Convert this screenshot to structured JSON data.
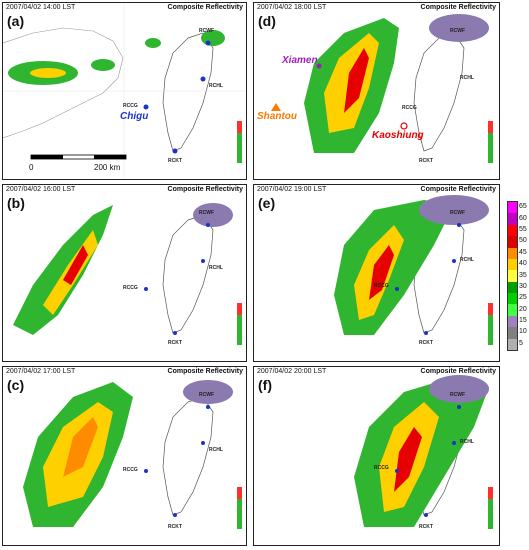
{
  "panels": [
    {
      "id": "a",
      "label": "(a)",
      "time": "2007/04/02 14:00 LST",
      "title": "Composite Reflectivity"
    },
    {
      "id": "b",
      "label": "(b)",
      "time": "2007/04/02 16:00 LST",
      "title": "Composite Reflectivity"
    },
    {
      "id": "c",
      "label": "(c)",
      "time": "2007/04/02 17:00 LST",
      "title": "Composite Reflectivity"
    },
    {
      "id": "d",
      "label": "(d)",
      "time": "2007/04/02 18:00 LST",
      "title": "Composite Reflectivity"
    },
    {
      "id": "e",
      "label": "(e)",
      "time": "2007/04/02 19:00 LST",
      "title": "Composite Reflectivity"
    },
    {
      "id": "f",
      "label": "(f)",
      "time": "2007/04/02 20:00 LST",
      "title": "Composite Reflectivity"
    }
  ],
  "stations": {
    "rcwf": "RCWF",
    "rchl": "RCHL",
    "rccg": "RCCG",
    "rckt": "RCKT"
  },
  "cities": {
    "chigu": "Chigu",
    "xiamen": "Xiamen",
    "shantou": "Shantou",
    "kaoshiung": "Kaoshiung"
  },
  "scale": {
    "start": "0",
    "end": "200 km"
  },
  "legend": {
    "ticks": [
      "65",
      "60",
      "55",
      "50",
      "45",
      "40",
      "35",
      "30",
      "25",
      "20",
      "15",
      "10",
      "5"
    ],
    "colors": [
      "#ff00ff",
      "#c000c0",
      "#ff0000",
      "#d80000",
      "#ff8c00",
      "#ffd000",
      "#ffff40",
      "#00a000",
      "#00d000",
      "#40ff40",
      "#a080c0",
      "#808080",
      "#b0b0b0"
    ]
  },
  "colors": {
    "chigu": "#1a33cc",
    "xiamen": "#9b1fbf",
    "shantou": "#ff7a00",
    "kaoshiung": "#e60000"
  }
}
